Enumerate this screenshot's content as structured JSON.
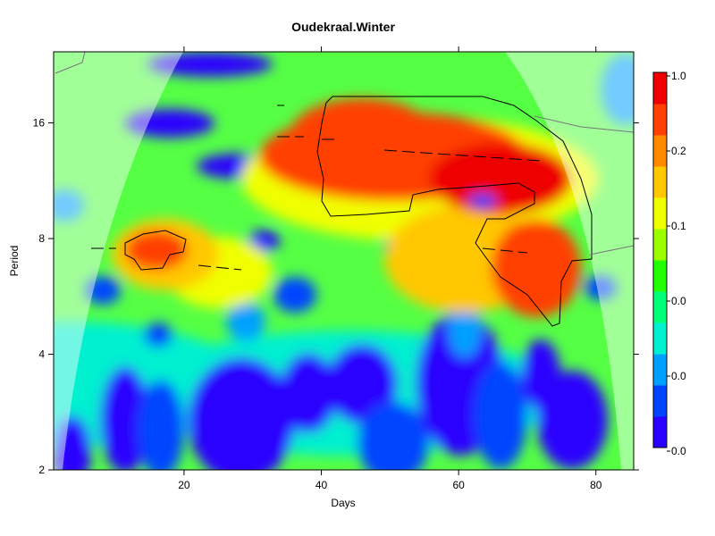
{
  "chart_data": {
    "type": "heatmap",
    "title": "Oudekraal.Winter",
    "xlabel": "Days",
    "ylabel": "Period",
    "xlim": [
      1,
      85.5
    ],
    "ylim": [
      2,
      24.5
    ],
    "y_scale": "log2",
    "x_ticks": [
      20,
      40,
      60,
      80
    ],
    "y_ticks": [
      2,
      4,
      8,
      16
    ],
    "y_tick_labels": [
      "2",
      "4",
      "8",
      "16"
    ],
    "legend": {
      "placement": "right",
      "labels": [
        "1.0",
        "0.2",
        "0.1",
        "0.0",
        "0.0",
        "0.0"
      ]
    },
    "colors": [
      "#2a00ff",
      "#0044ff",
      "#00a0ff",
      "#00f0d0",
      "#00ff7a",
      "#22ff00",
      "#9cff00",
      "#f0ff00",
      "#ffc800",
      "#ff8a00",
      "#ff4000",
      "#ee0000"
    ]
  }
}
